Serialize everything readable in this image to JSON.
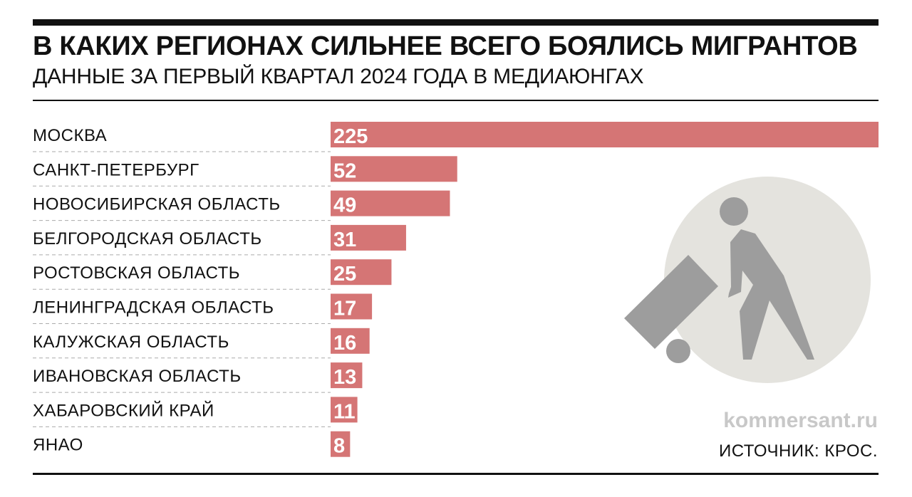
{
  "chart_data": {
    "type": "bar",
    "title": "В КАКИХ РЕГИОНАХ СИЛЬНЕЕ ВСЕГО БОЯЛИСЬ МИГРАНТОВ",
    "subtitle": "ДАННЫЕ ЗА ПЕРВЫЙ КВАРТАЛ 2024 ГОДА В МЕДИАЮНГАХ",
    "orientation": "horizontal",
    "categories": [
      "МОСКВА",
      "САНКТ-ПЕТЕРБУРГ",
      "НОВОСИБИРСКАЯ ОБЛАСТЬ",
      "БЕЛГОРОДСКАЯ ОБЛАСТЬ",
      "РОСТОВСКАЯ ОБЛАСТЬ",
      "ЛЕНИНГРАДСКАЯ ОБЛАСТЬ",
      "КАЛУЖСКАЯ ОБЛАСТЬ",
      "ИВАНОВСКАЯ ОБЛАСТЬ",
      "ХАБАРОВСКИЙ КРАЙ",
      "ЯНАО"
    ],
    "values": [
      225,
      52,
      49,
      31,
      25,
      17,
      16,
      13,
      11,
      8
    ],
    "xlim": [
      0,
      225
    ],
    "xlabel": "",
    "ylabel": "",
    "bar_color": "#d57575"
  },
  "footer": {
    "site": "kommersant.ru",
    "source": "ИСТОЧНИК: КРОС."
  },
  "colors": {
    "circle": "#e4e3de",
    "figure": "#9d9d9d"
  }
}
